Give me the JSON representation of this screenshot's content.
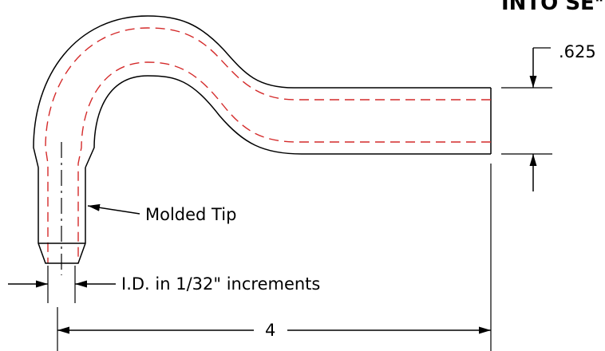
{
  "header_partial": "INTO SE",
  "cut_char": "\"",
  "dims": {
    "wall": ".625",
    "length": "4",
    "tip": "Molded Tip",
    "id": "I.D. in 1/32\" increments"
  },
  "colors": {
    "outline": "#000000",
    "centerline": "#d42a2a"
  }
}
